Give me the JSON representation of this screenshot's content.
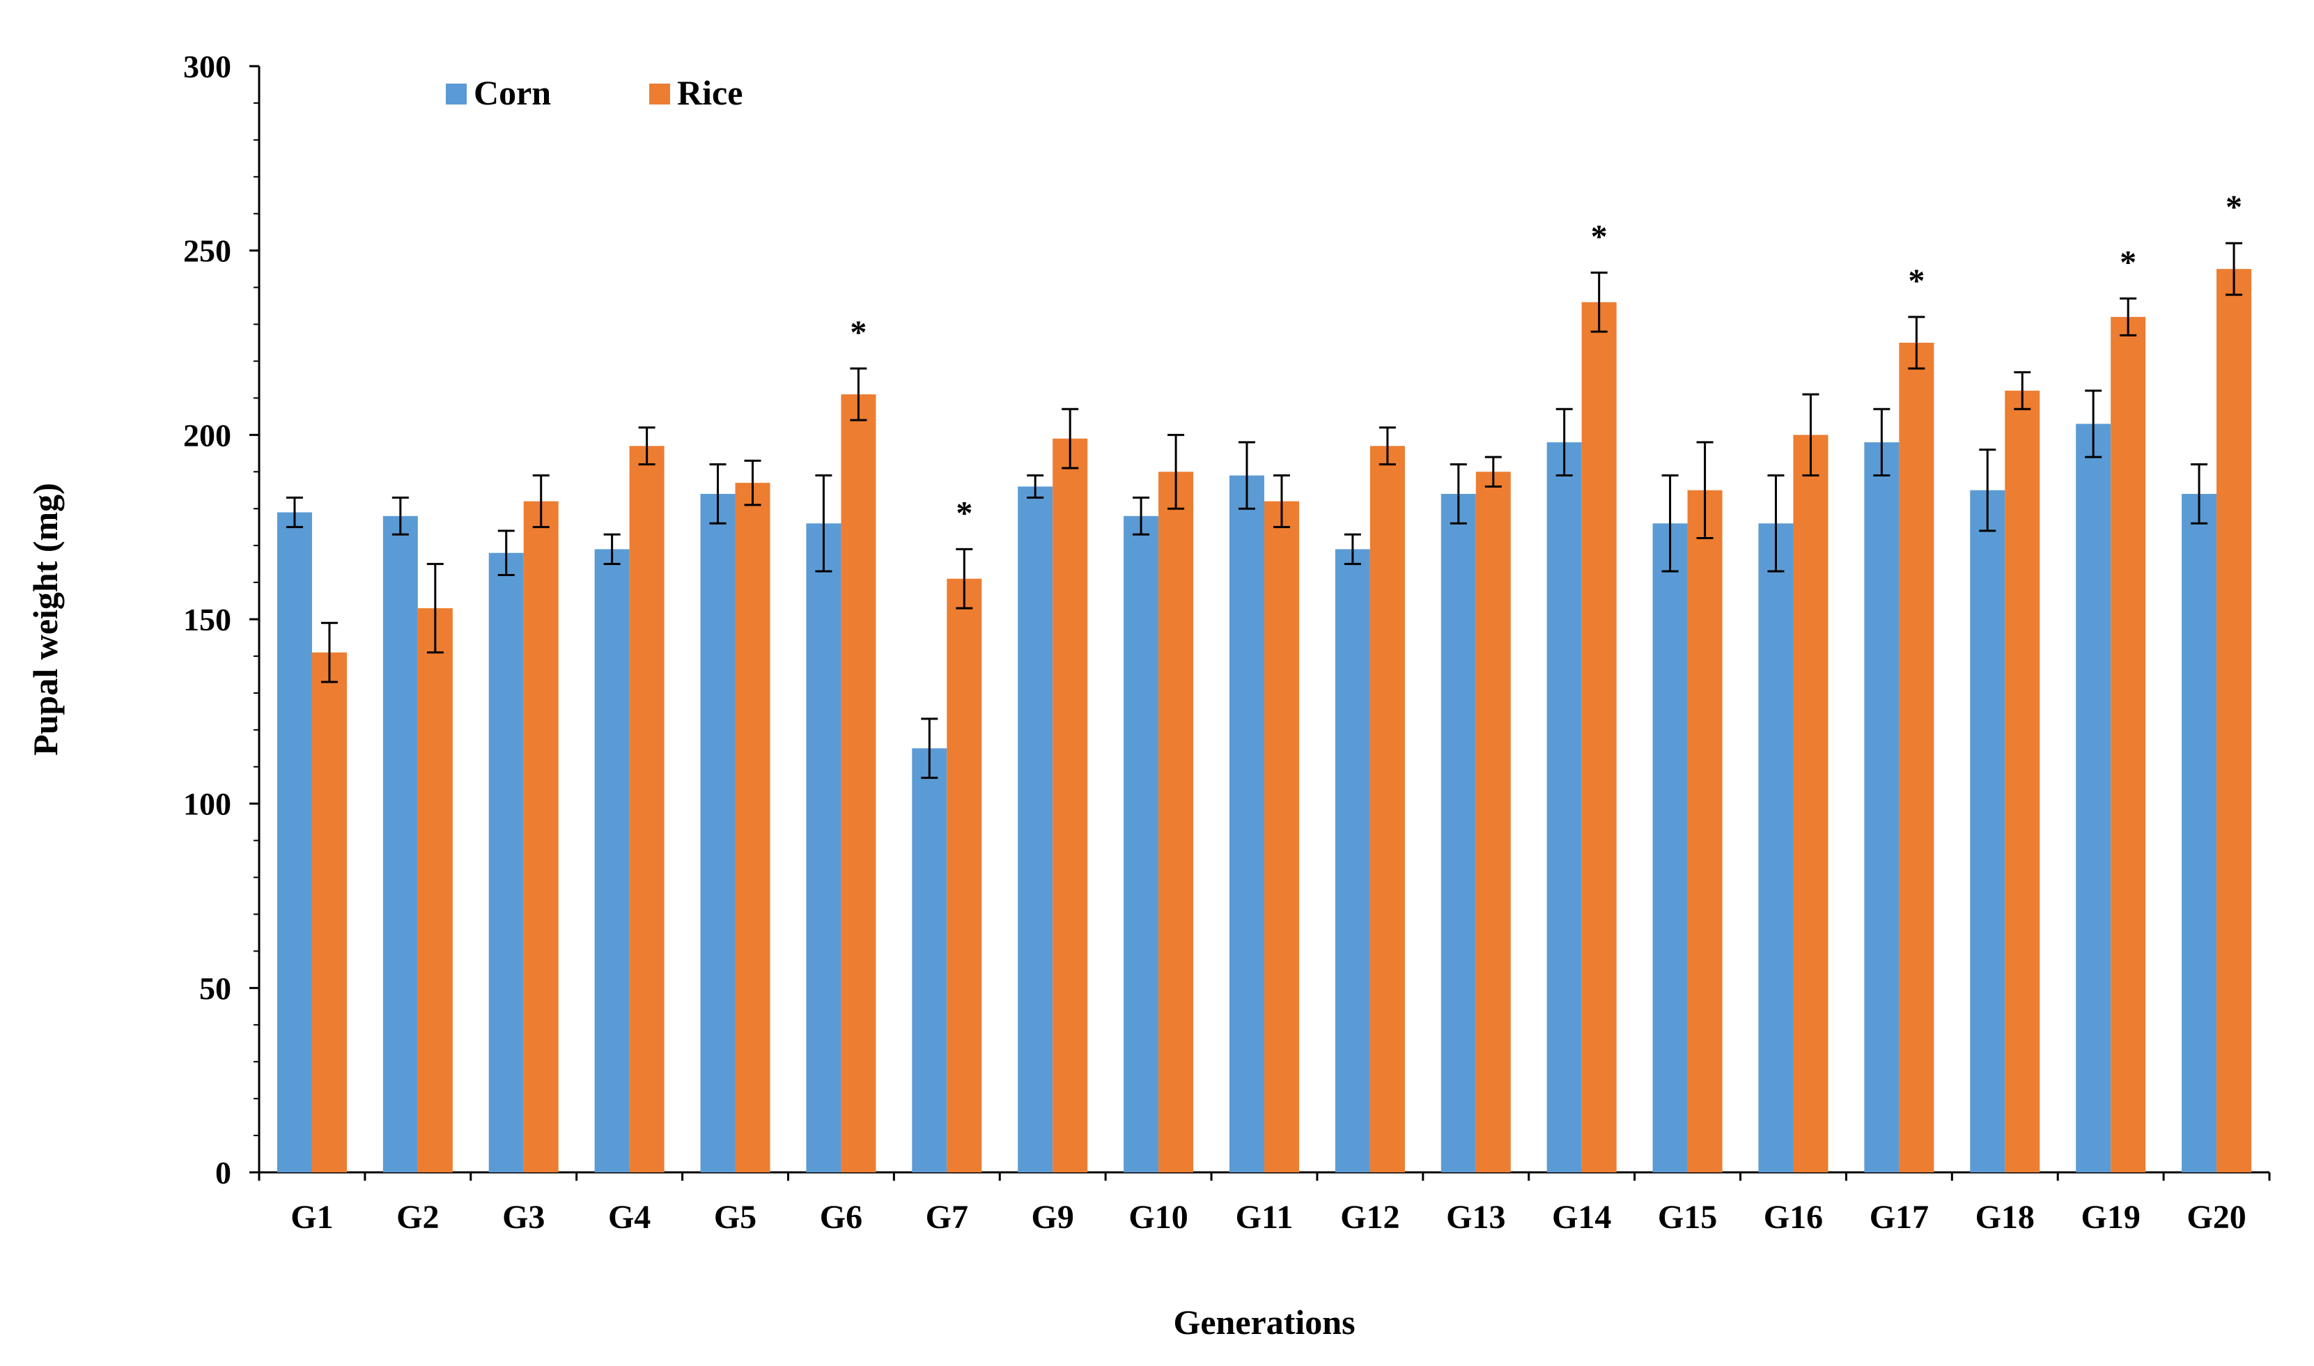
{
  "chart_data": {
    "type": "bar",
    "title": "",
    "xlabel": "Generations",
    "ylabel": "Pupal weight (mg)",
    "ylim": [
      0,
      300
    ],
    "yticks": [
      0,
      50,
      100,
      150,
      200,
      250,
      300
    ],
    "legend_position": "top-left",
    "categories": [
      "G1",
      "G2",
      "G3",
      "G4",
      "G5",
      "G6",
      "G7",
      "G9",
      "G10",
      "G11",
      "G12",
      "G13",
      "G14",
      "G15",
      "G16",
      "G17",
      "G18",
      "G19",
      "G20"
    ],
    "series": [
      {
        "name": "Corn",
        "color": "#5B9BD5",
        "values": [
          179,
          178,
          168,
          169,
          184,
          176,
          115,
          186,
          178,
          189,
          169,
          184,
          198,
          176,
          176,
          198,
          185,
          203,
          184
        ],
        "errors": [
          4,
          5,
          6,
          4,
          8,
          13,
          8,
          3,
          5,
          9,
          4,
          8,
          9,
          13,
          13,
          9,
          11,
          9,
          8
        ]
      },
      {
        "name": "Rice",
        "color": "#ED7D31",
        "values": [
          141,
          153,
          182,
          197,
          187,
          211,
          161,
          199,
          190,
          182,
          197,
          190,
          236,
          185,
          200,
          225,
          212,
          232,
          245
        ],
        "errors": [
          8,
          12,
          7,
          5,
          6,
          7,
          8,
          8,
          10,
          7,
          5,
          4,
          8,
          13,
          11,
          7,
          5,
          5,
          7
        ]
      }
    ],
    "significance": {
      "marker": "*",
      "categories": [
        "G6",
        "G7",
        "G14",
        "G17",
        "G19",
        "G20"
      ]
    }
  }
}
